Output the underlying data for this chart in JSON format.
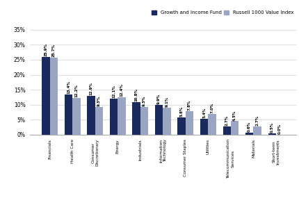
{
  "categories": [
    "Financials",
    "Health Care",
    "Consumer\nDiscretionary",
    "Energy",
    "Industrials",
    "Information\nTechnology",
    "Consumer Staples",
    "Utilities",
    "Telecommunication\nServices",
    "Materials",
    "Short-term\nInvestments"
  ],
  "fund_values": [
    25.9,
    13.4,
    12.9,
    12.1,
    10.8,
    9.9,
    5.8,
    5.4,
    2.7,
    0.6,
    0.5
  ],
  "bench_values": [
    25.7,
    12.2,
    9.3,
    12.4,
    9.3,
    9.1,
    7.8,
    7.0,
    4.5,
    2.7,
    0.0
  ],
  "fund_color": "#1a2a5e",
  "bench_color": "#9aa5c4",
  "legend_fund": "Growth and Income Fund",
  "legend_bench": "Russell 1000 Value Index",
  "ylim": [
    0,
    37
  ],
  "yticks": [
    0,
    5,
    10,
    15,
    20,
    25,
    30,
    35
  ],
  "ytick_labels": [
    "0%",
    "5%",
    "10%",
    "15%",
    "20%",
    "25%",
    "30%",
    "35%"
  ],
  "bar_width": 0.35,
  "label_fontsize": 4.0,
  "tick_fontsize": 5.5,
  "xtick_fontsize": 4.2
}
